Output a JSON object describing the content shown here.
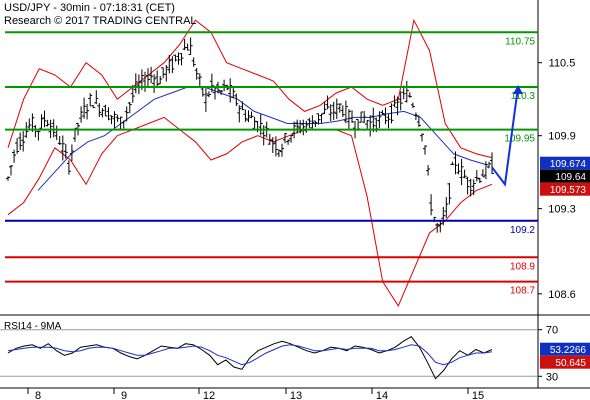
{
  "header": {
    "line1": "USD/JPY - 30min - 07:18:31 (CET)",
    "line2": "Research © 2017 TRADING CENTRAL"
  },
  "indicator": {
    "title": "RSI14 - 9MA"
  },
  "colors": {
    "price": "#000000",
    "ma": "#1f2fbf",
    "bollinger": "#e00000",
    "resistance": "#009900",
    "pivot": "#0000aa",
    "support": "#dd0000",
    "forecast": "#1030e0",
    "badge_upper": "#1030c0",
    "badge_last": "#000000",
    "badge_lower": "#cc1010"
  },
  "chart_data": [
    {
      "type": "candlestick",
      "title": "USD/JPY - 30min",
      "x_tick_labels": [
        "8",
        "9",
        "12",
        "13",
        "14",
        "15"
      ],
      "y_tick_labels": [
        "110.5",
        "109.9",
        "109.3",
        "108.6"
      ],
      "ylim": [
        108.45,
        110.95
      ],
      "horizontal_levels": [
        {
          "label": "110.75",
          "value": 110.75,
          "kind": "resistance"
        },
        {
          "label": "110.3",
          "value": 110.3,
          "kind": "resistance"
        },
        {
          "label": "109.95",
          "value": 109.95,
          "kind": "resistance"
        },
        {
          "label": "109.2",
          "value": 109.2,
          "kind": "pivot"
        },
        {
          "label": "108.9",
          "value": 108.9,
          "kind": "support"
        },
        {
          "label": "108.7",
          "value": 108.7,
          "kind": "support"
        }
      ],
      "badges": [
        {
          "label": "109.674",
          "value": 109.674,
          "kind": "upper"
        },
        {
          "label": "109.64",
          "value": 109.64,
          "kind": "last"
        },
        {
          "label": "109.573",
          "value": 109.573,
          "kind": "lower"
        }
      ],
      "price_path": [
        109.55,
        109.8,
        109.9,
        110.0,
        109.95,
        110.05,
        109.95,
        109.85,
        109.65,
        109.95,
        110.1,
        110.2,
        110.15,
        110.1,
        110.05,
        110.0,
        110.15,
        110.3,
        110.35,
        110.4,
        110.35,
        110.45,
        110.5,
        110.6,
        110.65,
        110.4,
        110.2,
        110.3,
        110.25,
        110.3,
        110.2,
        110.1,
        110.05,
        110.0,
        109.95,
        109.85,
        109.8,
        109.9,
        109.95,
        109.98,
        110.0,
        110.05,
        110.1,
        110.1,
        110.15,
        110.05,
        110.0,
        110.05,
        110.0,
        110.02,
        110.05,
        110.1,
        110.2,
        110.25,
        110.1,
        109.9,
        109.3,
        109.1,
        109.3,
        109.7,
        109.6,
        109.5,
        109.55,
        109.6,
        109.64
      ],
      "forecast_path": [
        109.5,
        110.3
      ],
      "bollinger_upper": [
        109.8,
        110.2,
        110.45,
        110.4,
        110.3,
        110.5,
        110.4,
        110.2,
        110.3,
        110.4,
        110.5,
        110.65,
        110.85,
        110.75,
        110.5,
        110.45,
        110.4,
        110.35,
        110.2,
        110.1,
        110.15,
        110.25,
        110.3,
        110.2,
        110.15,
        110.2,
        110.85,
        110.6,
        110.0,
        109.8,
        109.75,
        109.72
      ],
      "bollinger_lower": [
        109.25,
        109.35,
        109.55,
        109.8,
        109.7,
        109.5,
        109.75,
        109.9,
        109.95,
        110.0,
        110.05,
        109.95,
        109.85,
        109.7,
        109.75,
        109.85,
        109.9,
        109.85,
        109.9,
        109.95,
        109.95,
        109.95,
        109.9,
        109.4,
        108.7,
        108.5,
        108.8,
        109.1,
        109.2,
        109.35,
        109.45,
        109.5
      ],
      "moving_average": [
        109.45,
        109.6,
        109.75,
        109.85,
        109.9,
        110.0,
        110.1,
        110.2,
        110.25,
        110.3,
        110.3,
        110.25,
        110.2,
        110.1,
        110.05,
        110.0,
        110.0,
        110.0,
        110.02,
        110.05,
        110.05,
        110.08,
        110.1,
        110.05,
        109.9,
        109.75,
        109.7,
        109.66
      ]
    },
    {
      "type": "line",
      "title": "RSI14 - 9MA",
      "y_tick_labels": [
        "70",
        "30"
      ],
      "ylim": [
        20,
        80
      ],
      "badges": [
        {
          "label": "53.2266",
          "value": 53.2266,
          "kind": "upper"
        },
        {
          "label": "50.645",
          "value": 50.645,
          "kind": "lower"
        }
      ],
      "series": [
        {
          "values": [
            50,
            54,
            56,
            57,
            54,
            58,
            52,
            48,
            50,
            55,
            56,
            57,
            55,
            54,
            50,
            47,
            45,
            48,
            52,
            56,
            55,
            54,
            58,
            57,
            53,
            48,
            40,
            44,
            38,
            36,
            46,
            52,
            55,
            58,
            60,
            58,
            55,
            52,
            50,
            52,
            55,
            54,
            52,
            56,
            55,
            53,
            50,
            52,
            55,
            60,
            64,
            55,
            42,
            28,
            35,
            45,
            52,
            48,
            53,
            50,
            53
          ]
        },
        {
          "values": [
            52,
            53,
            54,
            55,
            55,
            55,
            54,
            52,
            51,
            52,
            54,
            55,
            55,
            54,
            52,
            50,
            48,
            48,
            50,
            52,
            54,
            54,
            55,
            56,
            55,
            52,
            48,
            46,
            43,
            40,
            42,
            46,
            50,
            53,
            56,
            57,
            56,
            54,
            52,
            52,
            53,
            54,
            53,
            54,
            54,
            54,
            52,
            52,
            53,
            55,
            57,
            56,
            50,
            42,
            40,
            42,
            46,
            48,
            50,
            50,
            51
          ]
        }
      ]
    }
  ]
}
